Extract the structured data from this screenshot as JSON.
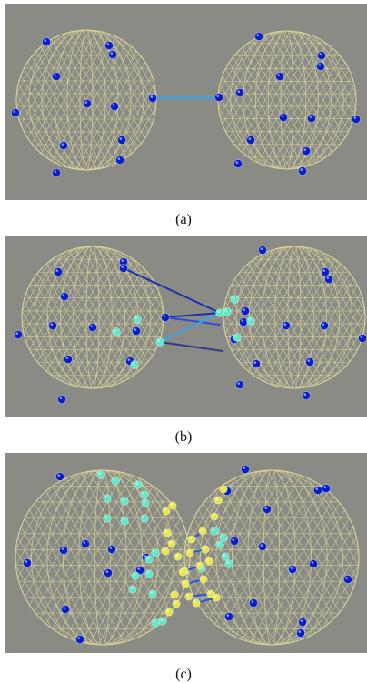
{
  "colors": {
    "background": "#8b8b86",
    "mesh": "#d8d49a",
    "particle_dark": "#0a1fc8",
    "particle_light": "#5de8c8",
    "particle_yellow": "#e8e64a",
    "bond": "#3aa3e8",
    "bond_dark": "#1a2fb0"
  },
  "figures": [
    {
      "id": "a",
      "caption": "(a)"
    },
    {
      "id": "b",
      "caption": "(b)"
    },
    {
      "id": "c",
      "caption": "(c)"
    }
  ]
}
